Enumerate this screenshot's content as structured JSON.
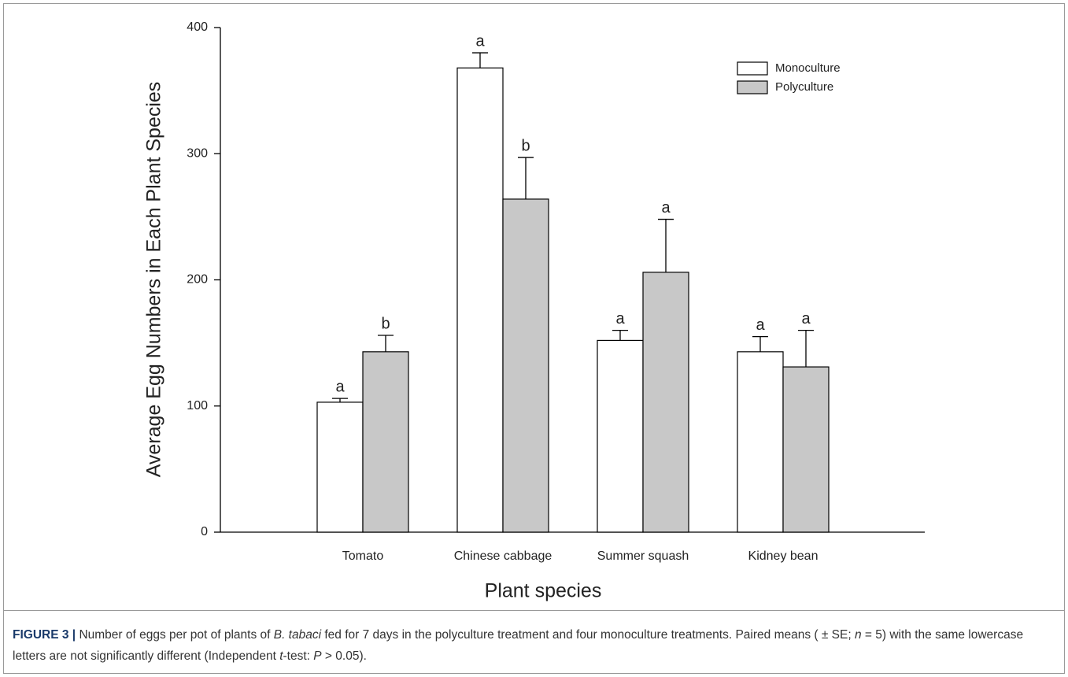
{
  "chart_data": {
    "type": "bar",
    "y_label": "Average Egg Numbers in Each Plant Species",
    "x_label": "Plant species",
    "categories": [
      "Tomato",
      "Chinese cabbage",
      "Summer squash",
      "Kidney bean"
    ],
    "series": [
      {
        "name": "Monoculture",
        "color": "#ffffff",
        "values": [
          103,
          368,
          152,
          143
        ],
        "errors": [
          3,
          12,
          8,
          12
        ],
        "letters": [
          "a",
          "a",
          "a",
          "a"
        ]
      },
      {
        "name": "Polyculture",
        "color": "#c8c8c8",
        "values": [
          143,
          264,
          206,
          131
        ],
        "errors": [
          13,
          33,
          42,
          29
        ],
        "letters": [
          "b",
          "b",
          "a",
          "a"
        ]
      }
    ],
    "ylim": [
      0,
      400
    ],
    "yticks": [
      0,
      100,
      200,
      300,
      400
    ],
    "grid": false,
    "legend": "upper right"
  },
  "caption": [
    {
      "text": "FIGURE 3 |",
      "style": "bold"
    },
    {
      "text": " Number of eggs per pot of plants of ",
      "style": "normal"
    },
    {
      "text": "B. tabaci",
      "style": "italic"
    },
    {
      "text": " fed for 7 days in the polyculture treatment and four monoculture treatments. Paired means ( ± SE; ",
      "style": "normal"
    },
    {
      "text": "n",
      "style": "italic"
    },
    {
      "text": " = 5) with the same lowercase letters are not significantly different (Independent ",
      "style": "normal"
    },
    {
      "text": "t",
      "style": "italic"
    },
    {
      "text": "-test: ",
      "style": "normal"
    },
    {
      "text": "P",
      "style": "italic"
    },
    {
      "text": " > 0.05).",
      "style": "normal"
    }
  ]
}
